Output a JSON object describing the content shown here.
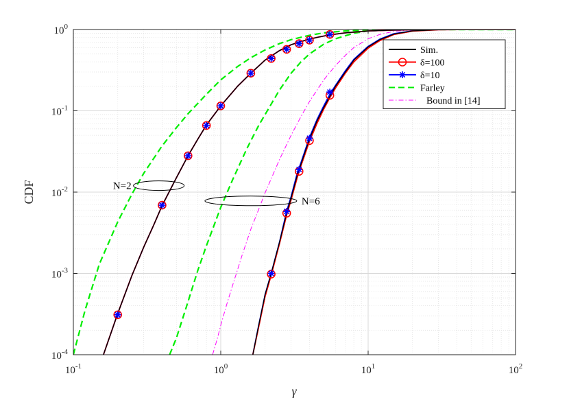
{
  "chart_data": {
    "type": "line",
    "x_scale": "log",
    "y_scale": "log",
    "xlim": [
      0.1,
      100
    ],
    "ylim": [
      0.0001,
      1
    ],
    "xlabel": "γ",
    "ylabel": "CDF",
    "grid": true,
    "minor_grid": true,
    "legend_position": "top-right",
    "x_ticks": [
      {
        "base": "10",
        "exp": "-1"
      },
      {
        "base": "10",
        "exp": "0"
      },
      {
        "base": "10",
        "exp": "1"
      },
      {
        "base": "10",
        "exp": "2"
      }
    ],
    "y_ticks": [
      {
        "base": "10",
        "exp": "-4"
      },
      {
        "base": "10",
        "exp": "-3"
      },
      {
        "base": "10",
        "exp": "-2"
      },
      {
        "base": "10",
        "exp": "-1"
      },
      {
        "base": "10",
        "exp": "0"
      }
    ],
    "annotations": [
      {
        "text": "N=2",
        "target_x": 0.38,
        "target_y": 0.012
      },
      {
        "text": "N=6",
        "target_x": 1.6,
        "target_y": 0.0078
      }
    ],
    "series": [
      {
        "name": "Sim.",
        "color": "#000000",
        "style": "solid",
        "marker": "none",
        "group": "N=2",
        "x": [
          0.16,
          0.2,
          0.25,
          0.3,
          0.35,
          0.4,
          0.5,
          0.6,
          0.7,
          0.8,
          1,
          1.3,
          1.6,
          2,
          2.5,
          3,
          3.5,
          4,
          4.5,
          5.5,
          7,
          10,
          15,
          20,
          30,
          50,
          100
        ],
        "y": [
          0.0001,
          0.00032,
          0.00095,
          0.0021,
          0.0039,
          0.0068,
          0.015,
          0.028,
          0.045,
          0.067,
          0.115,
          0.2,
          0.29,
          0.42,
          0.55,
          0.65,
          0.71,
          0.76,
          0.8,
          0.86,
          0.91,
          0.96,
          0.985,
          0.993,
          0.998,
          1,
          1
        ]
      },
      {
        "name": "Sim.",
        "color": "#000000",
        "style": "solid",
        "marker": "none",
        "group": "N=6",
        "x": [
          1.65,
          1.8,
          2,
          2.2,
          2.5,
          2.8,
          3,
          3.3,
          3.5,
          4,
          4.5,
          5,
          5.5,
          6,
          7,
          8,
          10,
          12,
          15,
          20,
          30,
          50,
          100
        ],
        "y": [
          0.0001,
          0.00022,
          0.00055,
          0.001,
          0.0024,
          0.0055,
          0.0085,
          0.016,
          0.022,
          0.045,
          0.075,
          0.11,
          0.15,
          0.2,
          0.3,
          0.42,
          0.61,
          0.75,
          0.88,
          0.96,
          0.995,
          1,
          1
        ]
      },
      {
        "name": "δ=100",
        "color": "#ff0000",
        "style": "solid",
        "marker": "circle",
        "group": "N=2",
        "x": [
          0.16,
          0.2,
          0.25,
          0.3,
          0.35,
          0.4,
          0.5,
          0.6,
          0.7,
          0.8,
          1,
          1.3,
          1.6,
          2,
          2.5,
          3,
          3.5,
          4,
          4.5,
          5.5,
          7,
          10,
          15,
          20,
          30,
          50,
          100
        ],
        "y": [
          0.0001,
          0.00032,
          0.00095,
          0.0021,
          0.0039,
          0.0068,
          0.015,
          0.028,
          0.045,
          0.067,
          0.115,
          0.2,
          0.29,
          0.42,
          0.55,
          0.65,
          0.71,
          0.76,
          0.8,
          0.86,
          0.91,
          0.96,
          0.985,
          0.993,
          0.998,
          1,
          1
        ],
        "marker_x": [
          0.2,
          0.4,
          0.6,
          0.8,
          1,
          1.6,
          2.2,
          2.8,
          3.4,
          4,
          5.5
        ],
        "marker_y": [
          0.00031,
          0.0069,
          0.028,
          0.066,
          0.115,
          0.29,
          0.44,
          0.57,
          0.67,
          0.74,
          0.87
        ]
      },
      {
        "name": "δ=100",
        "color": "#ff0000",
        "style": "solid",
        "marker": "circle",
        "group": "N=6",
        "x": [
          1.65,
          1.8,
          2,
          2.2,
          2.5,
          2.8,
          3,
          3.3,
          3.5,
          4,
          4.5,
          5,
          5.5,
          6,
          7,
          8,
          10,
          12,
          15,
          20,
          30,
          50,
          100
        ],
        "y": [
          0.0001,
          0.00021,
          0.00052,
          0.00095,
          0.0023,
          0.0052,
          0.008,
          0.015,
          0.021,
          0.042,
          0.07,
          0.105,
          0.145,
          0.19,
          0.29,
          0.4,
          0.59,
          0.73,
          0.87,
          0.955,
          0.993,
          1,
          1
        ],
        "marker_x": [
          2.2,
          2.8,
          3.4,
          4,
          5.5
        ],
        "marker_y": [
          0.00098,
          0.0055,
          0.018,
          0.043,
          0.155
        ]
      },
      {
        "name": "δ=10",
        "color": "#0000ff",
        "style": "solid",
        "marker": "star",
        "group": "N=2",
        "x": [
          0.16,
          0.2,
          0.25,
          0.3,
          0.35,
          0.4,
          0.5,
          0.6,
          0.7,
          0.8,
          1,
          1.3,
          1.6,
          2,
          2.5,
          3,
          3.5,
          4,
          4.5,
          5.5,
          7,
          10,
          15,
          20,
          30,
          50,
          100
        ],
        "y": [
          0.0001,
          0.00032,
          0.00095,
          0.0021,
          0.0039,
          0.0068,
          0.015,
          0.028,
          0.045,
          0.067,
          0.115,
          0.2,
          0.29,
          0.42,
          0.55,
          0.65,
          0.71,
          0.76,
          0.8,
          0.86,
          0.91,
          0.96,
          0.985,
          0.993,
          0.998,
          1,
          1
        ],
        "marker_x": [
          0.2,
          0.4,
          0.6,
          0.8,
          1,
          1.6,
          2.2,
          2.8,
          3.4,
          4,
          5.5
        ],
        "marker_y": [
          0.00031,
          0.0069,
          0.028,
          0.066,
          0.115,
          0.29,
          0.44,
          0.57,
          0.67,
          0.74,
          0.87
        ]
      },
      {
        "name": "δ=10",
        "color": "#0000ff",
        "style": "solid",
        "marker": "star",
        "group": "N=6",
        "x": [
          1.65,
          1.8,
          2,
          2.2,
          2.5,
          2.8,
          3,
          3.3,
          3.5,
          4,
          4.5,
          5,
          5.5,
          6,
          7,
          8,
          10,
          12,
          15,
          20,
          30,
          50,
          100
        ],
        "y": [
          0.0001,
          0.00022,
          0.00055,
          0.001,
          0.0024,
          0.0058,
          0.0088,
          0.017,
          0.023,
          0.047,
          0.078,
          0.115,
          0.16,
          0.205,
          0.31,
          0.43,
          0.62,
          0.76,
          0.89,
          0.962,
          0.996,
          1,
          1
        ],
        "marker_x": [
          2.2,
          2.8,
          3.4,
          4,
          5.5
        ],
        "marker_y": [
          0.001,
          0.0058,
          0.019,
          0.046,
          0.17
        ]
      },
      {
        "name": "Farley",
        "color": "#00ee00",
        "style": "dashed",
        "marker": "none",
        "group": "N=2",
        "x": [
          0.1,
          0.12,
          0.15,
          0.2,
          0.25,
          0.3,
          0.4,
          0.5,
          0.6,
          0.8,
          1,
          1.3,
          1.6,
          2,
          2.5,
          3,
          4,
          5,
          7,
          10,
          15,
          20,
          30,
          50,
          100
        ],
        "y": [
          0.0001,
          0.00035,
          0.0013,
          0.0043,
          0.0095,
          0.017,
          0.037,
          0.062,
          0.092,
          0.16,
          0.24,
          0.35,
          0.45,
          0.56,
          0.67,
          0.75,
          0.85,
          0.91,
          0.96,
          0.985,
          0.996,
          0.999,
          1,
          1,
          1
        ]
      },
      {
        "name": "Farley",
        "color": "#00ee00",
        "style": "dashed",
        "marker": "none",
        "group": "N=6",
        "x": [
          0.45,
          0.5,
          0.6,
          0.7,
          0.8,
          0.9,
          1,
          1.2,
          1.5,
          1.8,
          2,
          2.5,
          3,
          3.5,
          4,
          5,
          6,
          8,
          10,
          15,
          20,
          30,
          50,
          100
        ],
        "y": [
          0.0001,
          0.00016,
          0.00045,
          0.0011,
          0.0022,
          0.0039,
          0.0065,
          0.014,
          0.034,
          0.065,
          0.09,
          0.18,
          0.29,
          0.4,
          0.5,
          0.66,
          0.77,
          0.9,
          0.96,
          0.995,
          1,
          1,
          1,
          1
        ]
      },
      {
        "name": "Bound in [14]",
        "color": "#ff00ff",
        "style": "dashdot",
        "marker": "none",
        "group": "N=6",
        "x": [
          0.88,
          0.95,
          1,
          1.1,
          1.2,
          1.4,
          1.6,
          1.8,
          2,
          2.5,
          3,
          3.5,
          4,
          5,
          6,
          7,
          8,
          10,
          12,
          15,
          20,
          30,
          50,
          100
        ],
        "y": [
          0.0001,
          0.00016,
          0.00023,
          0.00042,
          0.0007,
          0.0017,
          0.0035,
          0.006,
          0.0098,
          0.025,
          0.05,
          0.085,
          0.13,
          0.24,
          0.36,
          0.48,
          0.6,
          0.77,
          0.87,
          0.95,
          0.99,
          1,
          1,
          1
        ]
      }
    ]
  },
  "legend": [
    {
      "label": "Sim.",
      "color": "#000000",
      "style": "solid",
      "marker": "none"
    },
    {
      "label": "δ=100",
      "color": "#ff0000",
      "style": "solid",
      "marker": "circle"
    },
    {
      "label": "δ=10",
      "color": "#0000ff",
      "style": "solid",
      "marker": "star"
    },
    {
      "label": "Farley",
      "color": "#00ee00",
      "style": "dashed",
      "marker": "none"
    },
    {
      "label": "Bound in [14]",
      "color": "#ff00ff",
      "style": "dashdot",
      "marker": "none"
    }
  ]
}
